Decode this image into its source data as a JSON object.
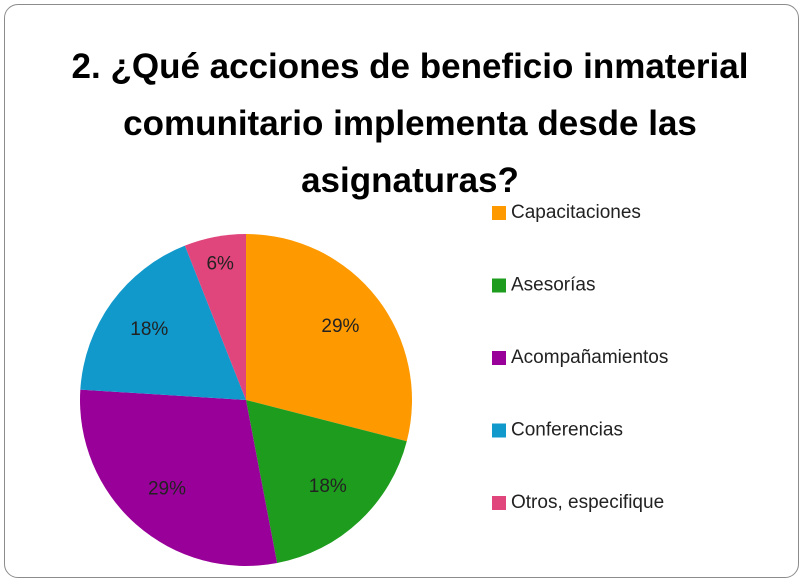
{
  "chart_data": {
    "type": "pie",
    "title": "2. ¿Qué acciones de beneficio inmaterial comunitario implementa desde las asignaturas?",
    "categories": [
      "Capacitaciones",
      "Asesorías",
      "Acompañamientos",
      "Conferencias",
      "Otros, especifique"
    ],
    "values": [
      29,
      18,
      29,
      18,
      6
    ],
    "value_labels": [
      "29%",
      "18%",
      "29%",
      "18%",
      "6%"
    ],
    "colors": [
      "#ff9900",
      "#1e9c1e",
      "#990099",
      "#1199cc",
      "#e0457b"
    ],
    "legend": "right"
  }
}
